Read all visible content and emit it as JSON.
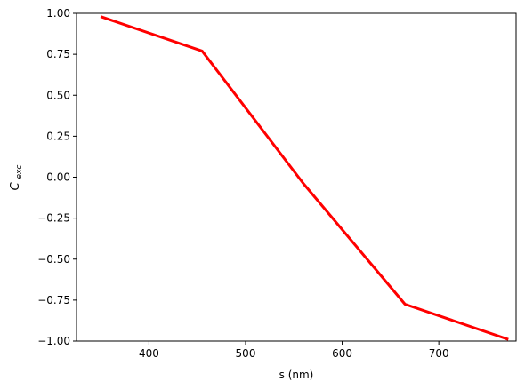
{
  "chart_data": {
    "type": "line",
    "title": "",
    "xlabel": "s (nm)",
    "ylabel": {
      "base": "C",
      "subscript": "exc"
    },
    "xlim": [
      325,
      780
    ],
    "ylim": [
      -1.0,
      1.0
    ],
    "x_ticks": [
      400,
      500,
      600,
      700
    ],
    "x_tick_labels": [
      "400",
      "500",
      "600",
      "700"
    ],
    "y_ticks": [
      1.0,
      0.75,
      0.5,
      0.25,
      0.0,
      -0.25,
      -0.5,
      -0.75,
      -1.0
    ],
    "y_tick_labels": [
      "1.00",
      "0.75",
      "0.50",
      "0.25",
      "0.00",
      "−0.25",
      "−0.50",
      "−0.75",
      "−1.00"
    ],
    "grid": false,
    "series": [
      {
        "color": "#ff0000",
        "x": [
          350,
          455,
          560,
          665,
          772
        ],
        "y": [
          0.98,
          0.77,
          -0.04,
          -0.775,
          -0.99
        ]
      }
    ]
  }
}
